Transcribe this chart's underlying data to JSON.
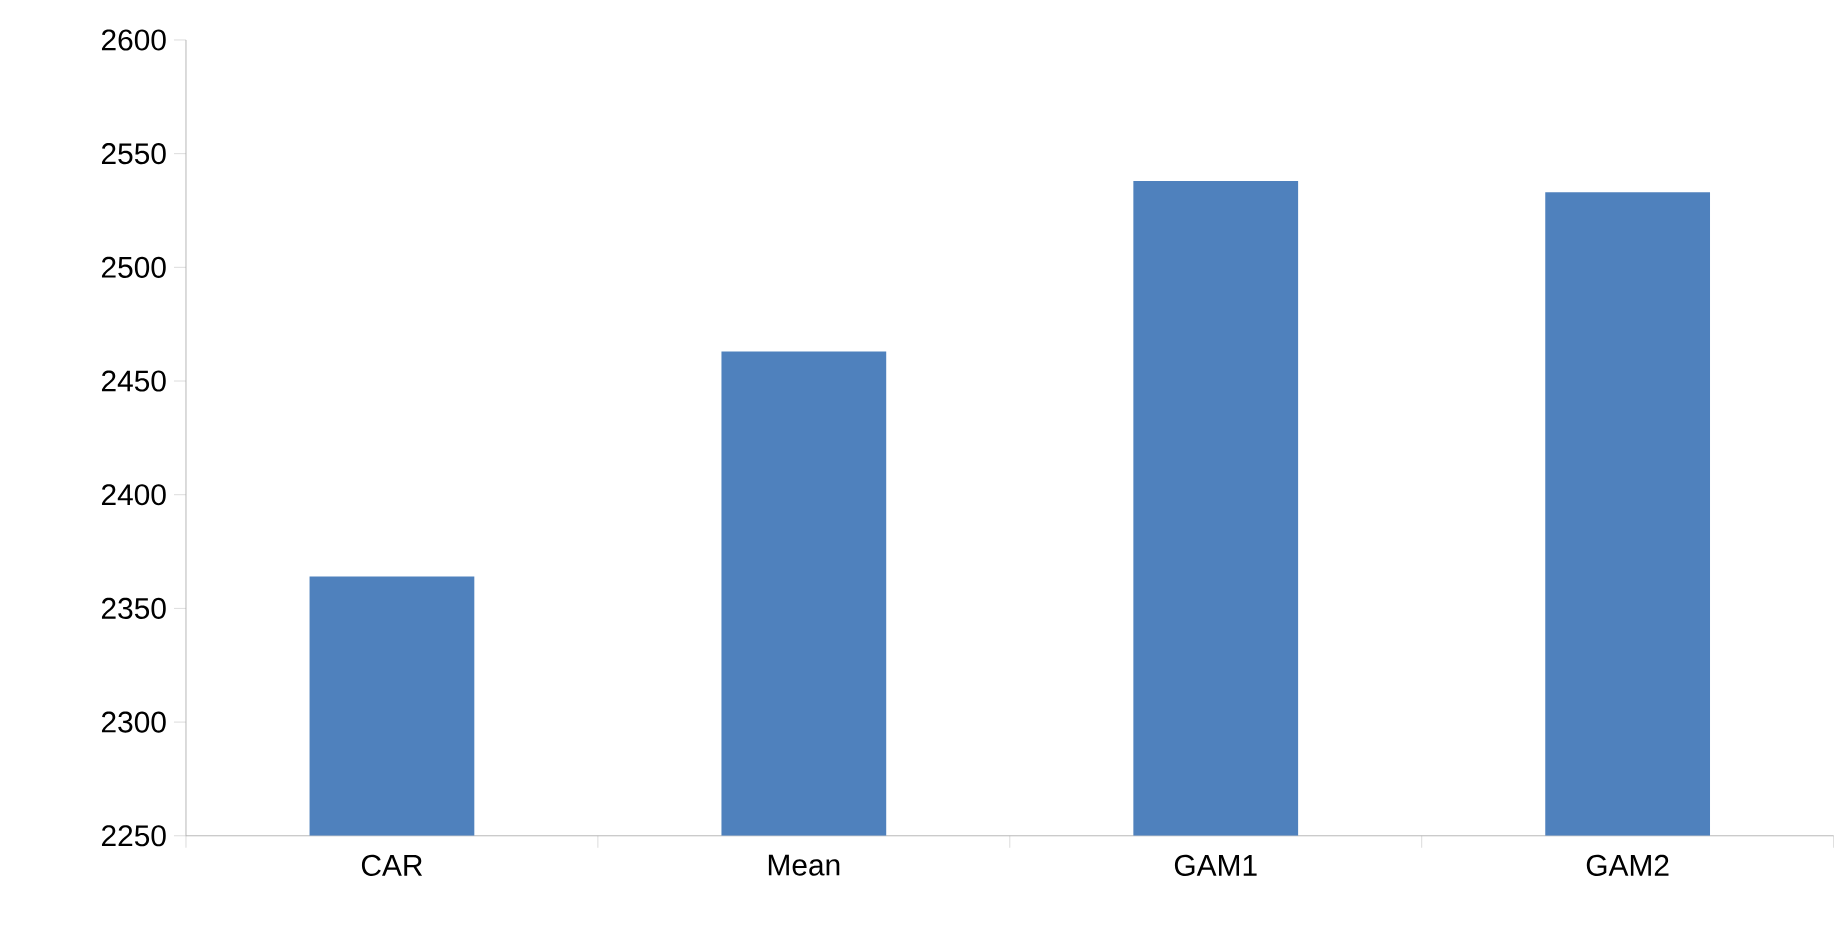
{
  "chart_data": {
    "type": "bar",
    "categories": [
      "CAR",
      "Mean",
      "GAM1",
      "GAM2"
    ],
    "values": [
      2364,
      2463,
      2538,
      2533
    ],
    "color": "#4f81bd",
    "ylim": [
      2250,
      2600
    ],
    "yticks": [
      2250,
      2300,
      2350,
      2400,
      2450,
      2500,
      2550,
      2600
    ],
    "grid": false
  }
}
